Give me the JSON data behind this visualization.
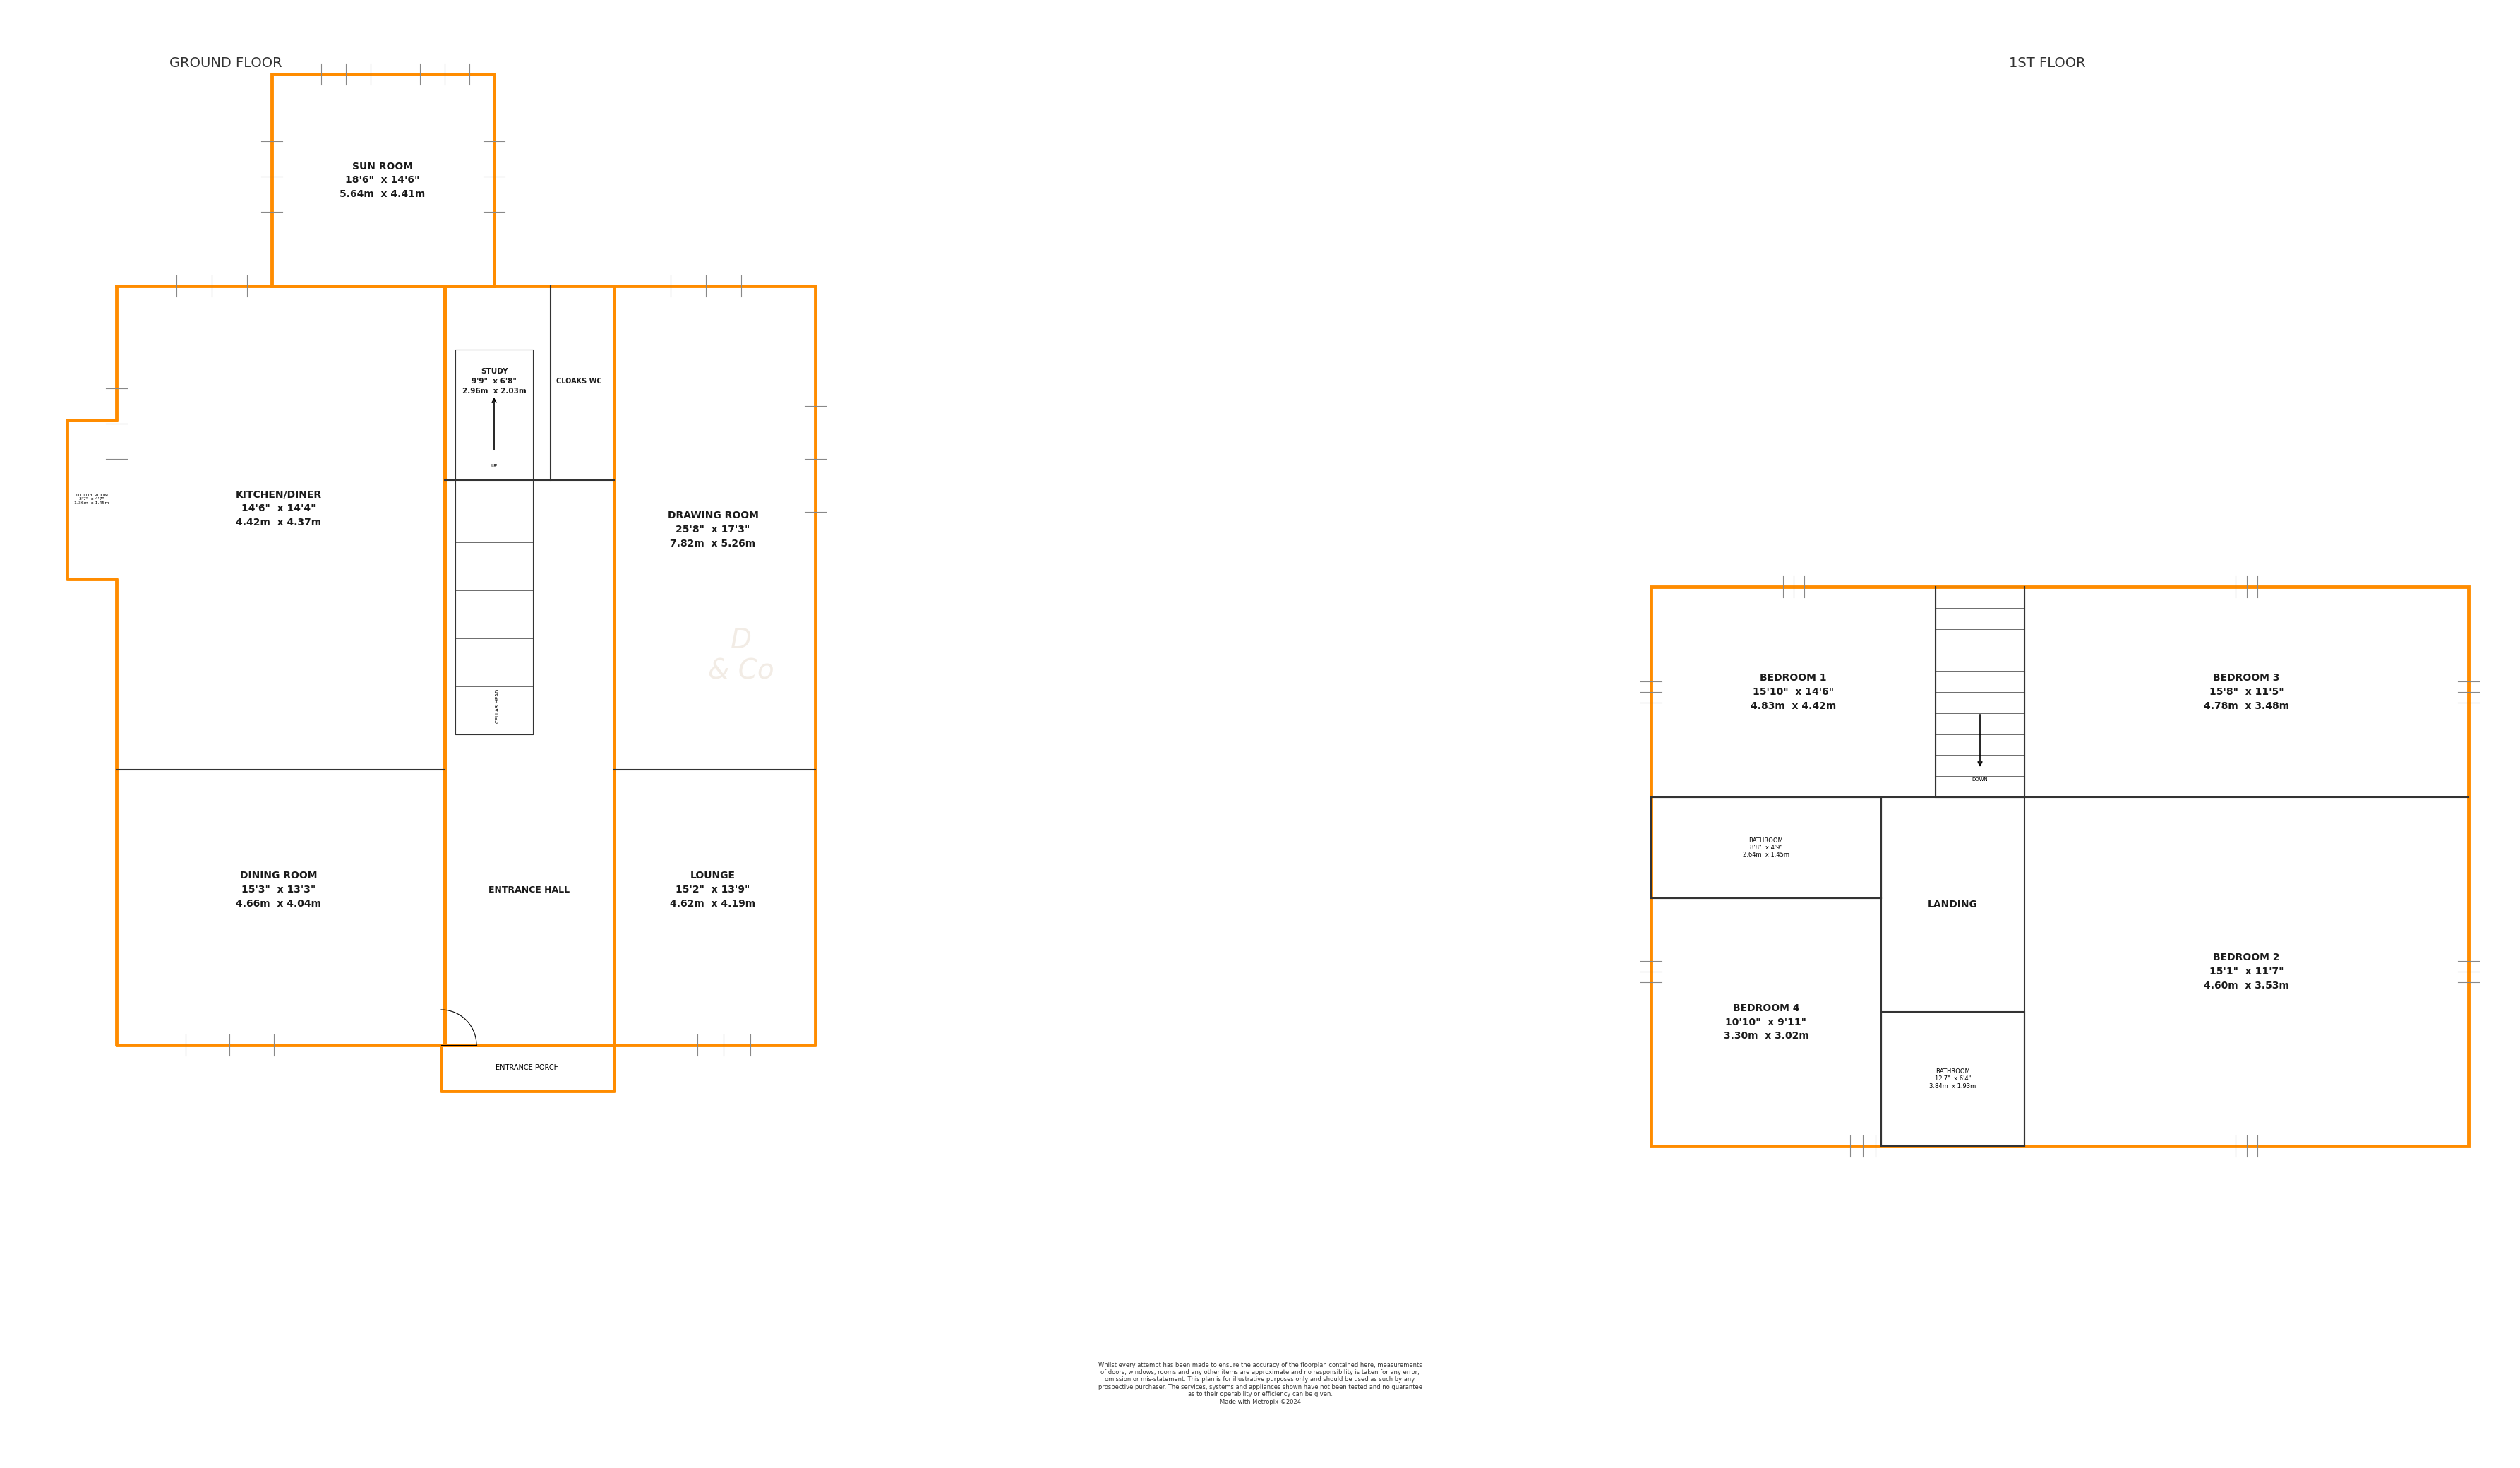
{
  "bg_color": "#ffffff",
  "wall_color": "#FF8C00",
  "wall_lw": 3.5,
  "inner_wall_color": "#333333",
  "inner_wall_lw": 1.5,
  "title_color": "#333333",
  "label_color": "#1a1a1a",
  "ground_floor_title": "GROUND FLOOR",
  "first_floor_title": "1ST FLOOR",
  "disclaimer": "Whilst every attempt has been made to ensure the accuracy of the floorplan contained here, measurements\nof doors, windows, rooms and any other items are approximate and no responsibility is taken for any error,\nomission or mis-statement. This plan is for illustrative purposes only and should be used as such by any\nprospective purchaser. The services, systems and appliances shown have not been tested and no guarantee\nas to their operability or efficiency can be given.\nMade with Metropix ©2024"
}
